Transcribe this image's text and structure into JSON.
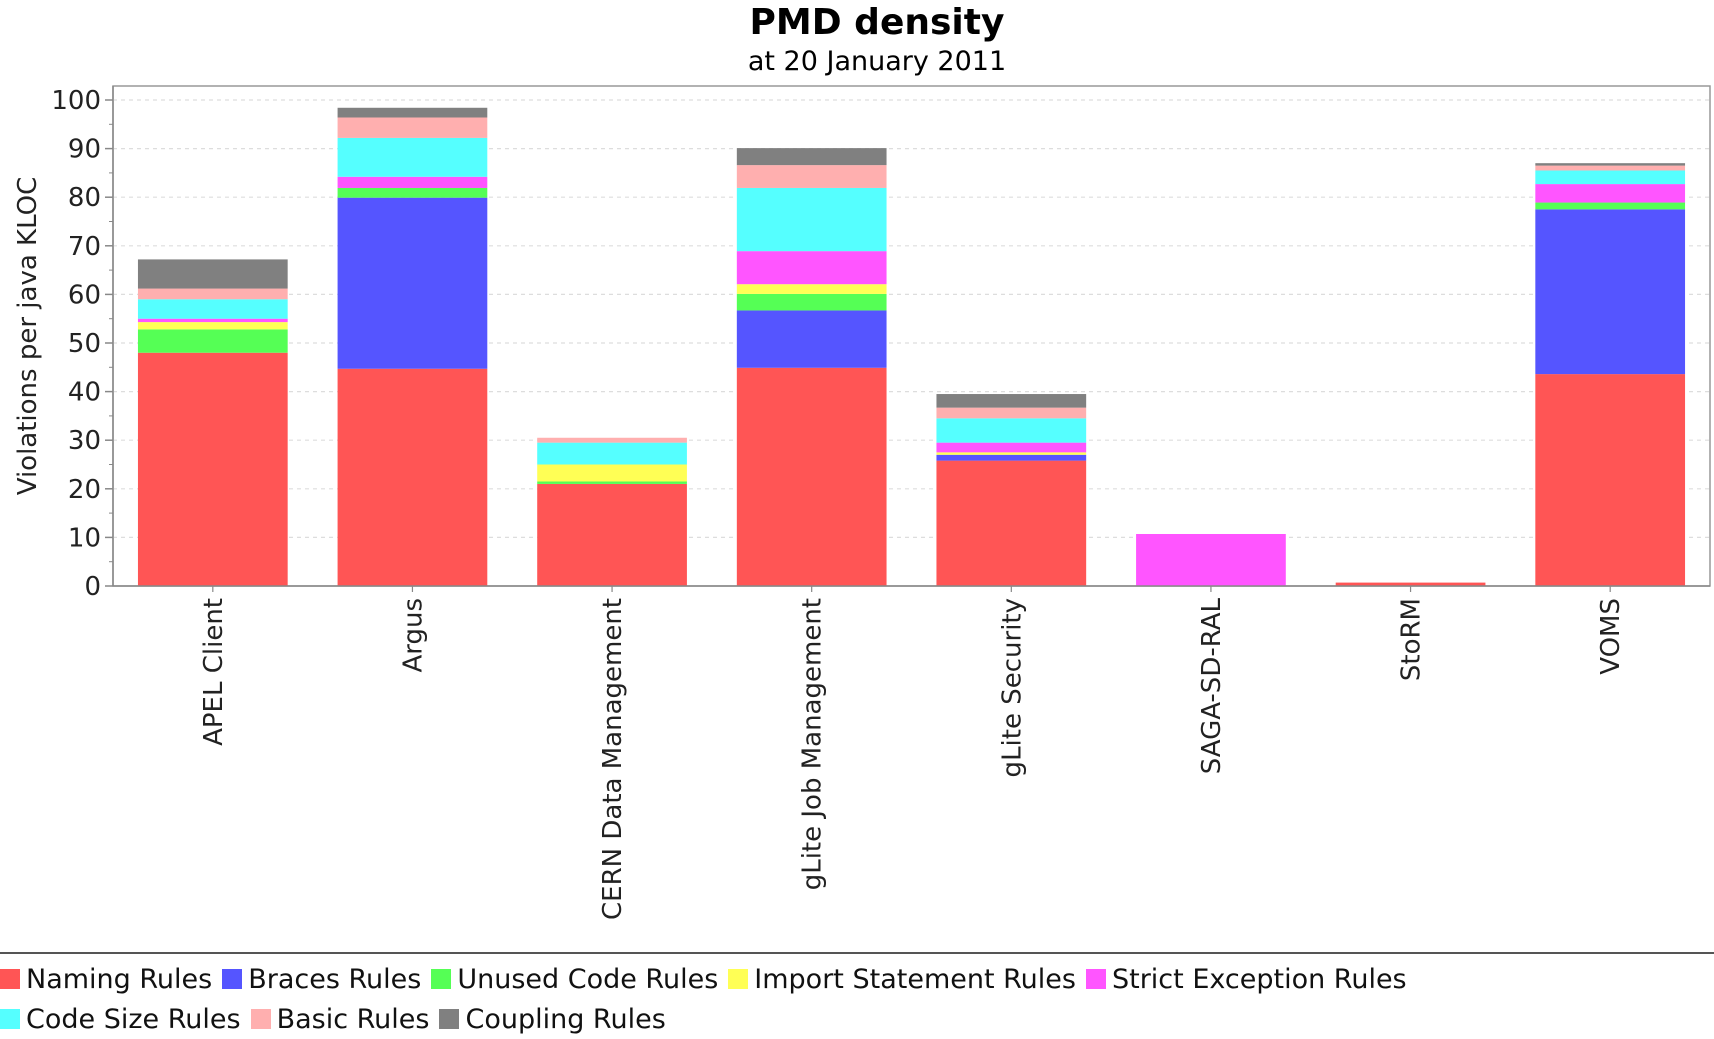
{
  "chart_data": {
    "type": "bar",
    "stacked": true,
    "title": "PMD density",
    "subtitle": "at 20 January 2011",
    "xlabel": "",
    "ylabel": "Violations per java KLOC",
    "ylim": [
      0,
      100
    ],
    "yticks": [
      "0",
      "10",
      "20",
      "30",
      "40",
      "50",
      "60",
      "70",
      "80",
      "90",
      "100"
    ],
    "grid": true,
    "legend_position": "bottom",
    "categories": [
      "APEL Client",
      "Argus",
      "CERN Data Management",
      "gLite Job Management",
      "gLite Security",
      "SAGA-SD-RAL",
      "StoRM",
      "VOMS"
    ],
    "series": [
      {
        "name": "Naming Rules",
        "color": "#ff5555",
        "values": [
          48,
          44.7,
          21,
          44.9,
          25.8,
          0,
          0.7,
          43.6
        ]
      },
      {
        "name": "Braces Rules",
        "color": "#5555ff",
        "values": [
          0,
          35.2,
          0,
          11.8,
          1.2,
          0,
          0,
          33.9
        ]
      },
      {
        "name": "Unused Code Rules",
        "color": "#55ff55",
        "values": [
          4.8,
          2,
          0.5,
          3.4,
          0,
          0,
          0,
          1.4
        ]
      },
      {
        "name": "Import Statement Rules",
        "color": "#ffff55",
        "values": [
          1.5,
          0,
          3.5,
          2,
          0.5,
          0,
          0,
          0
        ]
      },
      {
        "name": "Strict Exception Rules",
        "color": "#ff55ff",
        "values": [
          0.7,
          2.3,
          0,
          6.8,
          2,
          10.7,
          0,
          3.8
        ]
      },
      {
        "name": "Code Size Rules",
        "color": "#55ffff",
        "values": [
          4,
          8,
          4.5,
          13,
          5,
          0,
          0,
          2.8
        ]
      },
      {
        "name": "Basic Rules",
        "color": "#ffafaf",
        "values": [
          2.2,
          4.2,
          1,
          4.7,
          2.2,
          0,
          0,
          1
        ]
      },
      {
        "name": "Coupling Rules",
        "color": "#808080",
        "values": [
          6,
          2,
          0,
          3.5,
          2.8,
          0,
          0,
          0.5
        ]
      }
    ]
  }
}
